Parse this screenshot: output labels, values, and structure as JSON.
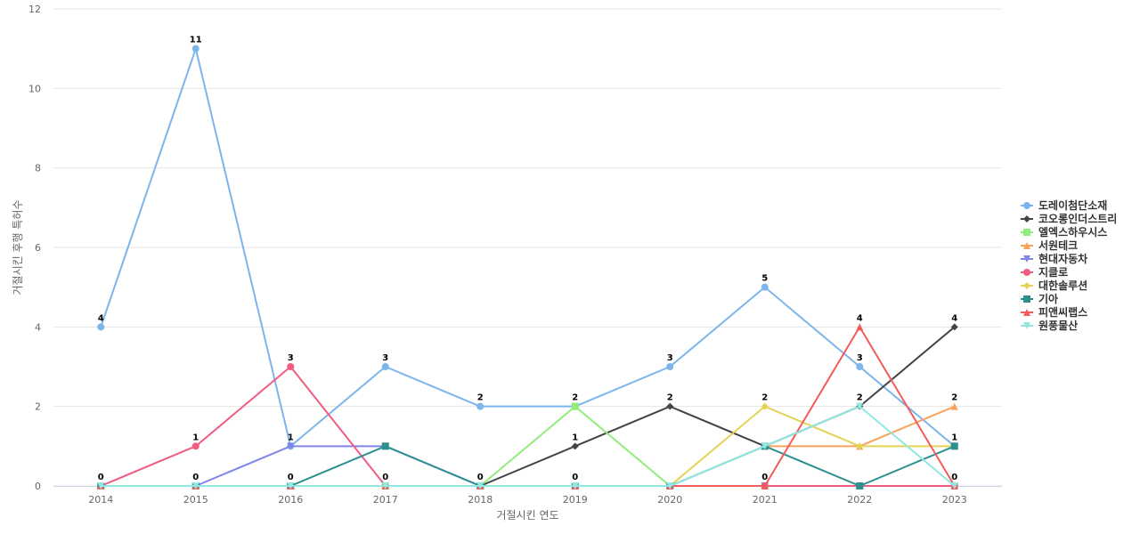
{
  "chart_data": {
    "type": "line",
    "xlabel": "거절시킨 연도",
    "ylabel": "거절시킨 후행 특허수",
    "x": [
      "2014",
      "2015",
      "2016",
      "2017",
      "2018",
      "2019",
      "2020",
      "2021",
      "2022",
      "2023"
    ],
    "ylim": [
      0,
      12
    ],
    "yticks": [
      0,
      2,
      4,
      6,
      8,
      10,
      12
    ],
    "grid": true,
    "legend_position": "right",
    "series": [
      {
        "name": "도레이첨단소재",
        "color": "#7cb5ec",
        "marker": "circle",
        "values": [
          4,
          11,
          1,
          3,
          2,
          2,
          3,
          5,
          3,
          1
        ]
      },
      {
        "name": "코오롱인더스트리",
        "color": "#434348",
        "marker": "diamond",
        "values": [
          0,
          0,
          0,
          0,
          0,
          1,
          2,
          1,
          2,
          4
        ]
      },
      {
        "name": "엘엑스하우시스",
        "color": "#90ed7d",
        "marker": "square",
        "values": [
          0,
          0,
          0,
          0,
          0,
          2,
          0,
          0,
          0,
          0
        ]
      },
      {
        "name": "서원테크",
        "color": "#f7a35c",
        "marker": "triangle",
        "values": [
          0,
          0,
          0,
          0,
          0,
          0,
          0,
          1,
          1,
          2
        ]
      },
      {
        "name": "현대자동차",
        "color": "#8085e9",
        "marker": "triangle-down",
        "values": [
          0,
          0,
          1,
          1,
          0,
          0,
          0,
          0,
          0,
          0
        ]
      },
      {
        "name": "지클로",
        "color": "#f15c80",
        "marker": "circle",
        "values": [
          0,
          1,
          3,
          0,
          0,
          0,
          0,
          0,
          0,
          0
        ]
      },
      {
        "name": "대한솔루션",
        "color": "#e4d354",
        "marker": "diamond",
        "values": [
          0,
          0,
          0,
          0,
          0,
          0,
          0,
          2,
          1,
          1
        ]
      },
      {
        "name": "기아",
        "color": "#2b908f",
        "marker": "square",
        "values": [
          0,
          0,
          0,
          1,
          0,
          0,
          0,
          1,
          0,
          1
        ]
      },
      {
        "name": "피앤씨랩스",
        "color": "#f45b5b",
        "marker": "triangle",
        "values": [
          0,
          0,
          0,
          0,
          0,
          0,
          0,
          0,
          4,
          0
        ]
      },
      {
        "name": "원풍물산",
        "color": "#91e8e1",
        "marker": "triangle-down",
        "values": [
          0,
          0,
          0,
          0,
          0,
          0,
          0,
          1,
          2,
          0
        ]
      }
    ],
    "data_labels": [
      {
        "series": 0,
        "points": [
          0,
          1,
          2,
          3,
          4,
          6,
          7,
          8,
          9
        ]
      },
      {
        "series": 2,
        "points": [
          5
        ]
      },
      {
        "series": 3,
        "points": [
          9
        ]
      },
      {
        "series": 5,
        "points": [
          1,
          2
        ]
      },
      {
        "series": 1,
        "points": [
          5,
          6,
          8,
          9
        ]
      },
      {
        "series": 8,
        "points": [
          0,
          1,
          2,
          3,
          4,
          5,
          7,
          8,
          9
        ]
      },
      {
        "series": 6,
        "points": [
          7
        ]
      }
    ]
  }
}
